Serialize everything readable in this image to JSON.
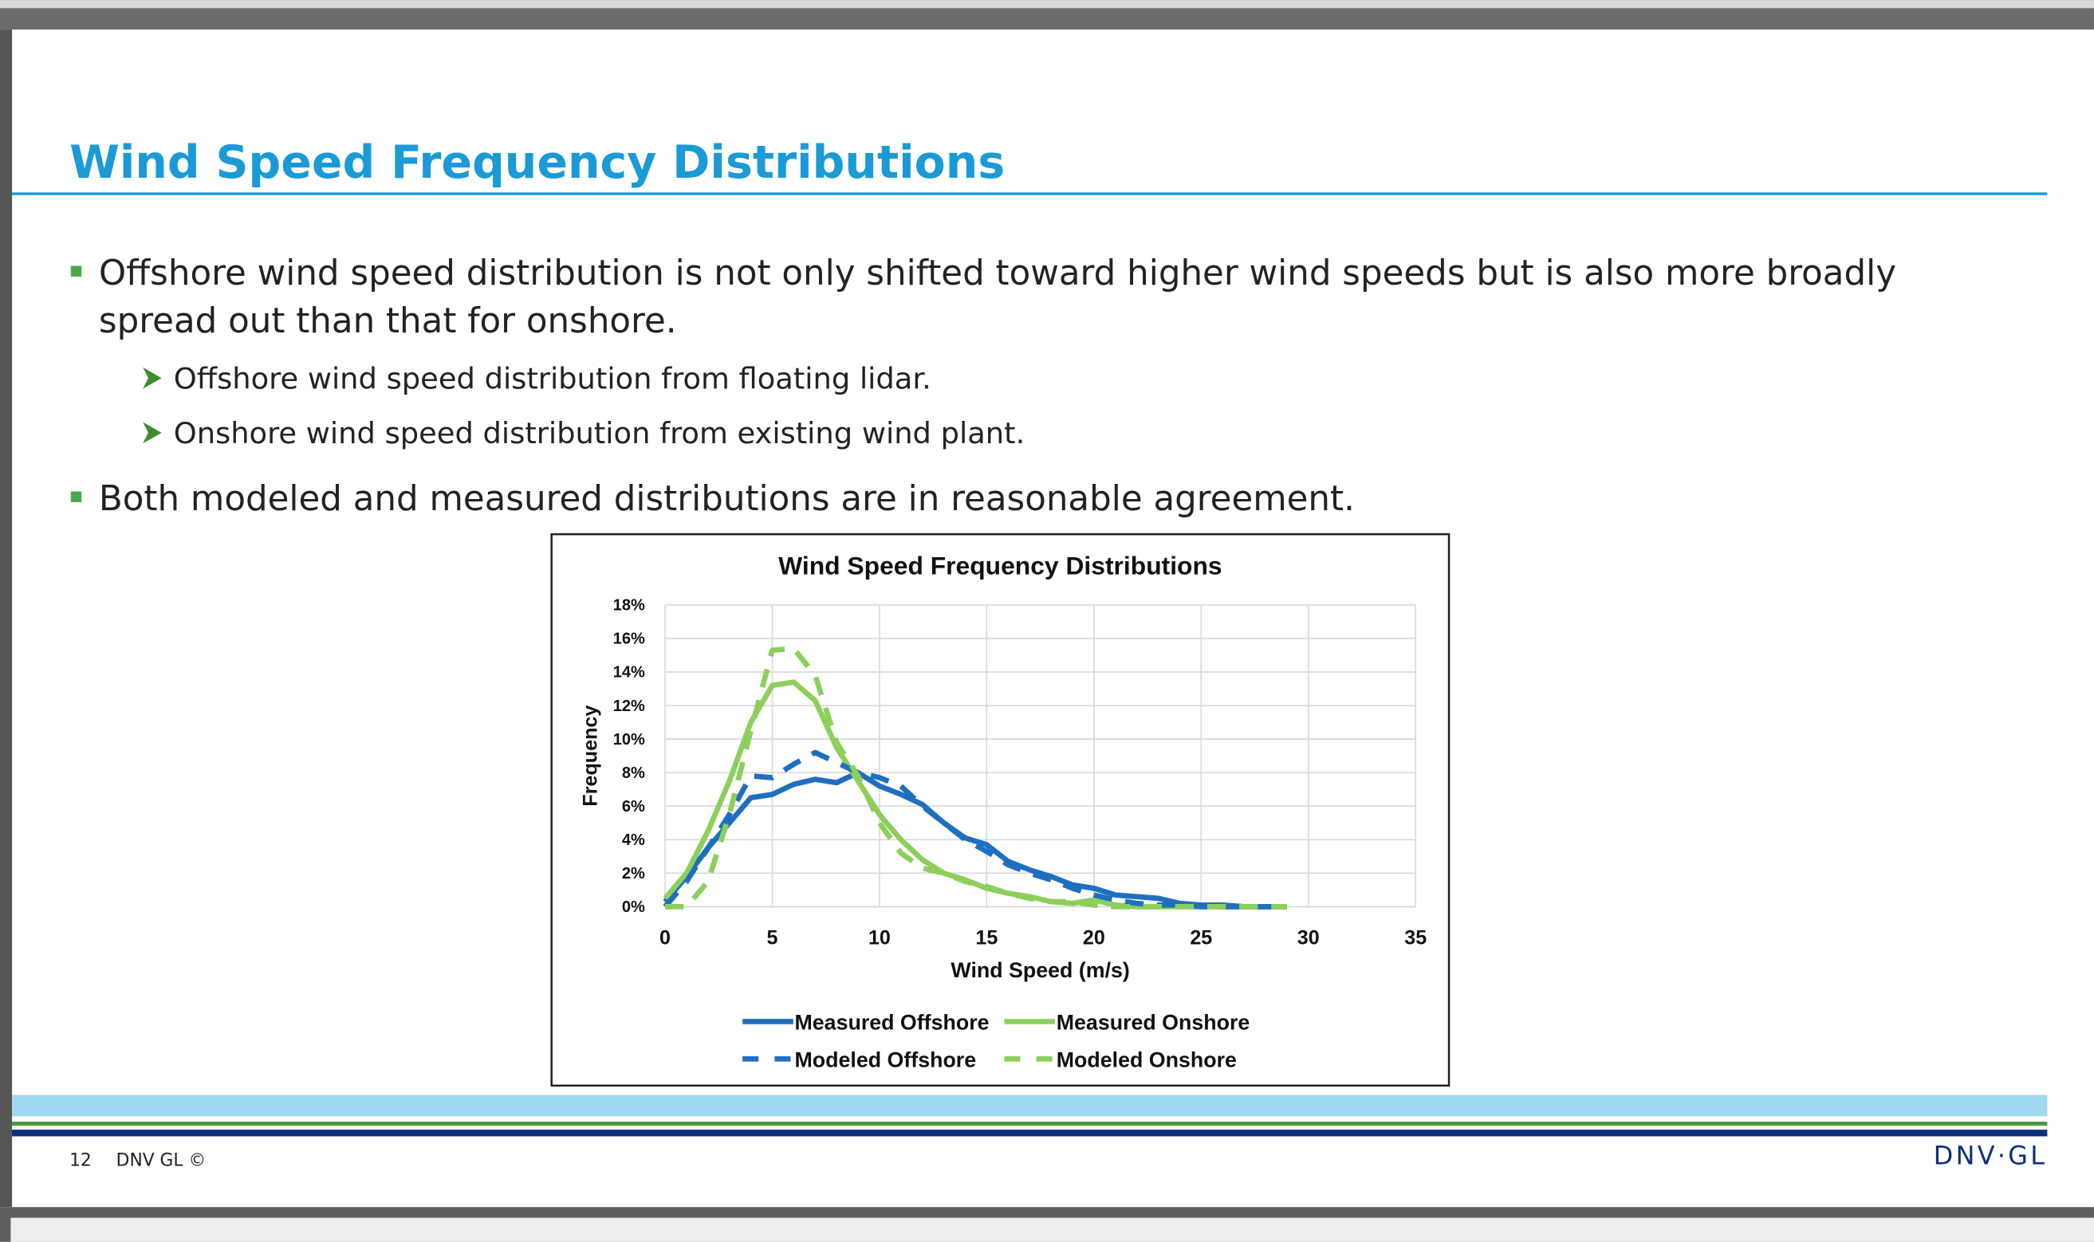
{
  "header": {
    "title": "Wind Speed Frequency Distributions"
  },
  "bullets": [
    {
      "text": "Offshore wind speed distribution is not only shifted toward higher wind speeds but is also more broadly spread out than that for onshore.",
      "subitems": [
        "Offshore wind speed distribution from floating lidar.",
        "Onshore wind speed distribution from existing wind plant."
      ]
    },
    {
      "text": "Both modeled and measured distributions are in reasonable agreement."
    }
  ],
  "chart_data": {
    "type": "line",
    "title": "Wind Speed Frequency Distributions",
    "x_label": "Wind Speed (m/s)",
    "y_label": "Frequency",
    "x": [
      0,
      1,
      2,
      3,
      4,
      5,
      6,
      7,
      8,
      9,
      10,
      11,
      12,
      13,
      14,
      15,
      16,
      17,
      18,
      19,
      20,
      21,
      22,
      23,
      24,
      25,
      26,
      27,
      28,
      29
    ],
    "series": [
      {
        "name": "Measured Offshore",
        "color": "#1f6fc0",
        "dashed": false,
        "values": [
          0.3,
          1.8,
          3.5,
          5.0,
          6.5,
          6.7,
          7.3,
          7.6,
          7.4,
          8.0,
          7.2,
          6.7,
          6.1,
          5.0,
          4.1,
          3.7,
          2.7,
          2.2,
          1.8,
          1.3,
          1.1,
          0.7,
          0.6,
          0.5,
          0.2,
          0.1,
          0.1,
          0,
          0,
          0
        ]
      },
      {
        "name": "Measured Onshore",
        "color": "#8dcf5c",
        "dashed": false,
        "values": [
          0.5,
          2.0,
          4.5,
          7.5,
          11.0,
          13.2,
          13.4,
          12.3,
          9.5,
          7.5,
          5.5,
          4.0,
          2.8,
          2.0,
          1.6,
          1.1,
          0.8,
          0.6,
          0.3,
          0.2,
          0.4,
          0.1,
          0,
          0,
          0,
          0,
          0,
          0,
          0,
          0
        ]
      },
      {
        "name": "Modeled Offshore",
        "color": "#1f6fc0",
        "dashed": true,
        "values": [
          0,
          1.5,
          3.5,
          5.5,
          7.8,
          7.7,
          8.5,
          9.2,
          8.6,
          8.0,
          7.7,
          7.2,
          6.0,
          5.0,
          4.0,
          3.3,
          2.5,
          2.0,
          1.6,
          1.1,
          0.7,
          0.4,
          0.2,
          0.1,
          0.1,
          0,
          0,
          0,
          0,
          0
        ]
      },
      {
        "name": "Modeled Onshore",
        "color": "#8dcf5c",
        "dashed": true,
        "values": [
          0,
          0,
          1.5,
          5.5,
          10.5,
          15.3,
          15.4,
          13.8,
          9.8,
          7.8,
          5.0,
          3.2,
          2.3,
          2.0,
          1.5,
          1.2,
          0.8,
          0.5,
          0.3,
          0.3,
          0.1,
          0,
          0,
          0,
          0,
          0,
          0,
          0,
          0,
          0
        ]
      }
    ],
    "xlim": [
      0,
      35
    ],
    "xticks": [
      0,
      5,
      10,
      15,
      20,
      25,
      30,
      35
    ],
    "ylim": [
      0,
      18
    ],
    "yticks": [
      {
        "value": 0,
        "label": "0%"
      },
      {
        "value": 2,
        "label": "2%"
      },
      {
        "value": 4,
        "label": "4%"
      },
      {
        "value": 6,
        "label": "6%"
      },
      {
        "value": 8,
        "label": "8%"
      },
      {
        "value": 10,
        "label": "10%"
      },
      {
        "value": 12,
        "label": "12%"
      },
      {
        "value": 14,
        "label": "14%"
      },
      {
        "value": 16,
        "label": "16%"
      },
      {
        "value": 18,
        "label": "18%"
      }
    ],
    "grid": true,
    "legend": "bottom"
  },
  "footer": {
    "page": "12",
    "copyright": "DNV GL ©",
    "logo": "DNV·GL"
  }
}
